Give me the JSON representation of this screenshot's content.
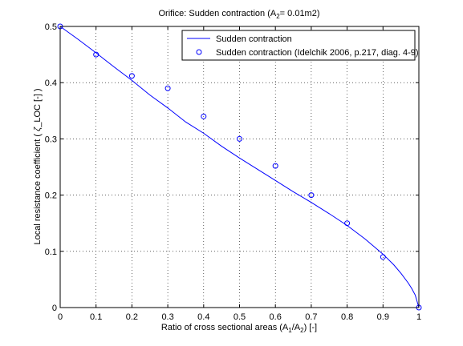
{
  "chart_data": {
    "type": "line",
    "title": {
      "prefix": "Orifice: Sudden contraction (A",
      "sub": "2",
      "suffix": "= 0.01m2)"
    },
    "xlabel": {
      "prefix": "Ratio of cross sectional areas (A",
      "sub1": "1",
      "mid": "/A",
      "sub2": "2",
      "suffix": ") [-]"
    },
    "ylabel": {
      "prefix": "Local resistance coefficient ( ",
      "zeta": "ζ",
      "suffix": "_LOC [-] )"
    },
    "xlim": [
      0,
      1
    ],
    "ylim": [
      0,
      0.5
    ],
    "xticks": [
      "0",
      "0.1",
      "0.2",
      "0.3",
      "0.4",
      "0.5",
      "0.6",
      "0.7",
      "0.8",
      "0.9",
      "1"
    ],
    "yticks": [
      "0",
      "0.1",
      "0.2",
      "0.3",
      "0.4",
      "0.5"
    ],
    "grid": true,
    "legend_position": "top-right",
    "series": [
      {
        "name": "Sudden contraction",
        "style": "line",
        "color": "#0000ff",
        "x": [
          0,
          0.05,
          0.1,
          0.15,
          0.2,
          0.25,
          0.3,
          0.35,
          0.4,
          0.45,
          0.5,
          0.55,
          0.6,
          0.65,
          0.7,
          0.75,
          0.8,
          0.85,
          0.9,
          0.93,
          0.95,
          0.97,
          0.98,
          0.99,
          1.0
        ],
        "y": [
          0.5,
          0.477,
          0.453,
          0.428,
          0.404,
          0.378,
          0.355,
          0.33,
          0.31,
          0.287,
          0.266,
          0.246,
          0.226,
          0.206,
          0.187,
          0.167,
          0.146,
          0.122,
          0.095,
          0.076,
          0.061,
          0.044,
          0.034,
          0.022,
          0.0
        ]
      },
      {
        "name": "Sudden contraction (Idelchik 2006, p.217, diag. 4-9)",
        "style": "markers",
        "marker": "circle",
        "color": "#0000ff",
        "x": [
          0,
          0.1,
          0.2,
          0.3,
          0.4,
          0.5,
          0.6,
          0.7,
          0.8,
          0.9,
          1.0
        ],
        "y": [
          0.5,
          0.45,
          0.412,
          0.39,
          0.34,
          0.3,
          0.252,
          0.2,
          0.15,
          0.09,
          0.0
        ]
      }
    ]
  }
}
